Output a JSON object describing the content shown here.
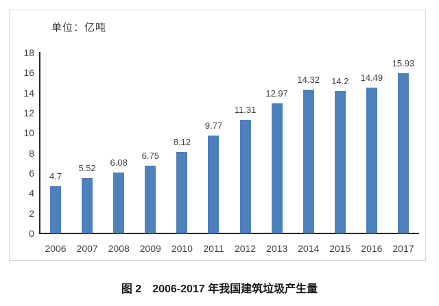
{
  "caption": "图 2　2006-2017 年我国建筑垃圾产生量",
  "chart_data": {
    "type": "bar",
    "title": "",
    "unit_label": "单位：亿吨",
    "categories": [
      "2006",
      "2007",
      "2008",
      "2009",
      "2010",
      "2011",
      "2012",
      "2013",
      "2014",
      "2015",
      "2016",
      "2017"
    ],
    "values": [
      4.7,
      5.52,
      6.08,
      6.75,
      8.12,
      9.77,
      11.31,
      12.97,
      14.32,
      14.2,
      14.49,
      15.93
    ],
    "value_labels": [
      "4.7",
      "5.52",
      "6.08",
      "6.75",
      "8.12",
      "9.77",
      "11.31",
      "12.97",
      "14.32",
      "14.2",
      "14.49",
      "15.93"
    ],
    "xlabel": "",
    "ylabel": "",
    "ylim": [
      0,
      18
    ],
    "ytick_step": 2,
    "grid": false,
    "legend": false,
    "bar_color": "#4e80bc",
    "axis_color": "#262626",
    "tick_label_color": "#404040"
  }
}
